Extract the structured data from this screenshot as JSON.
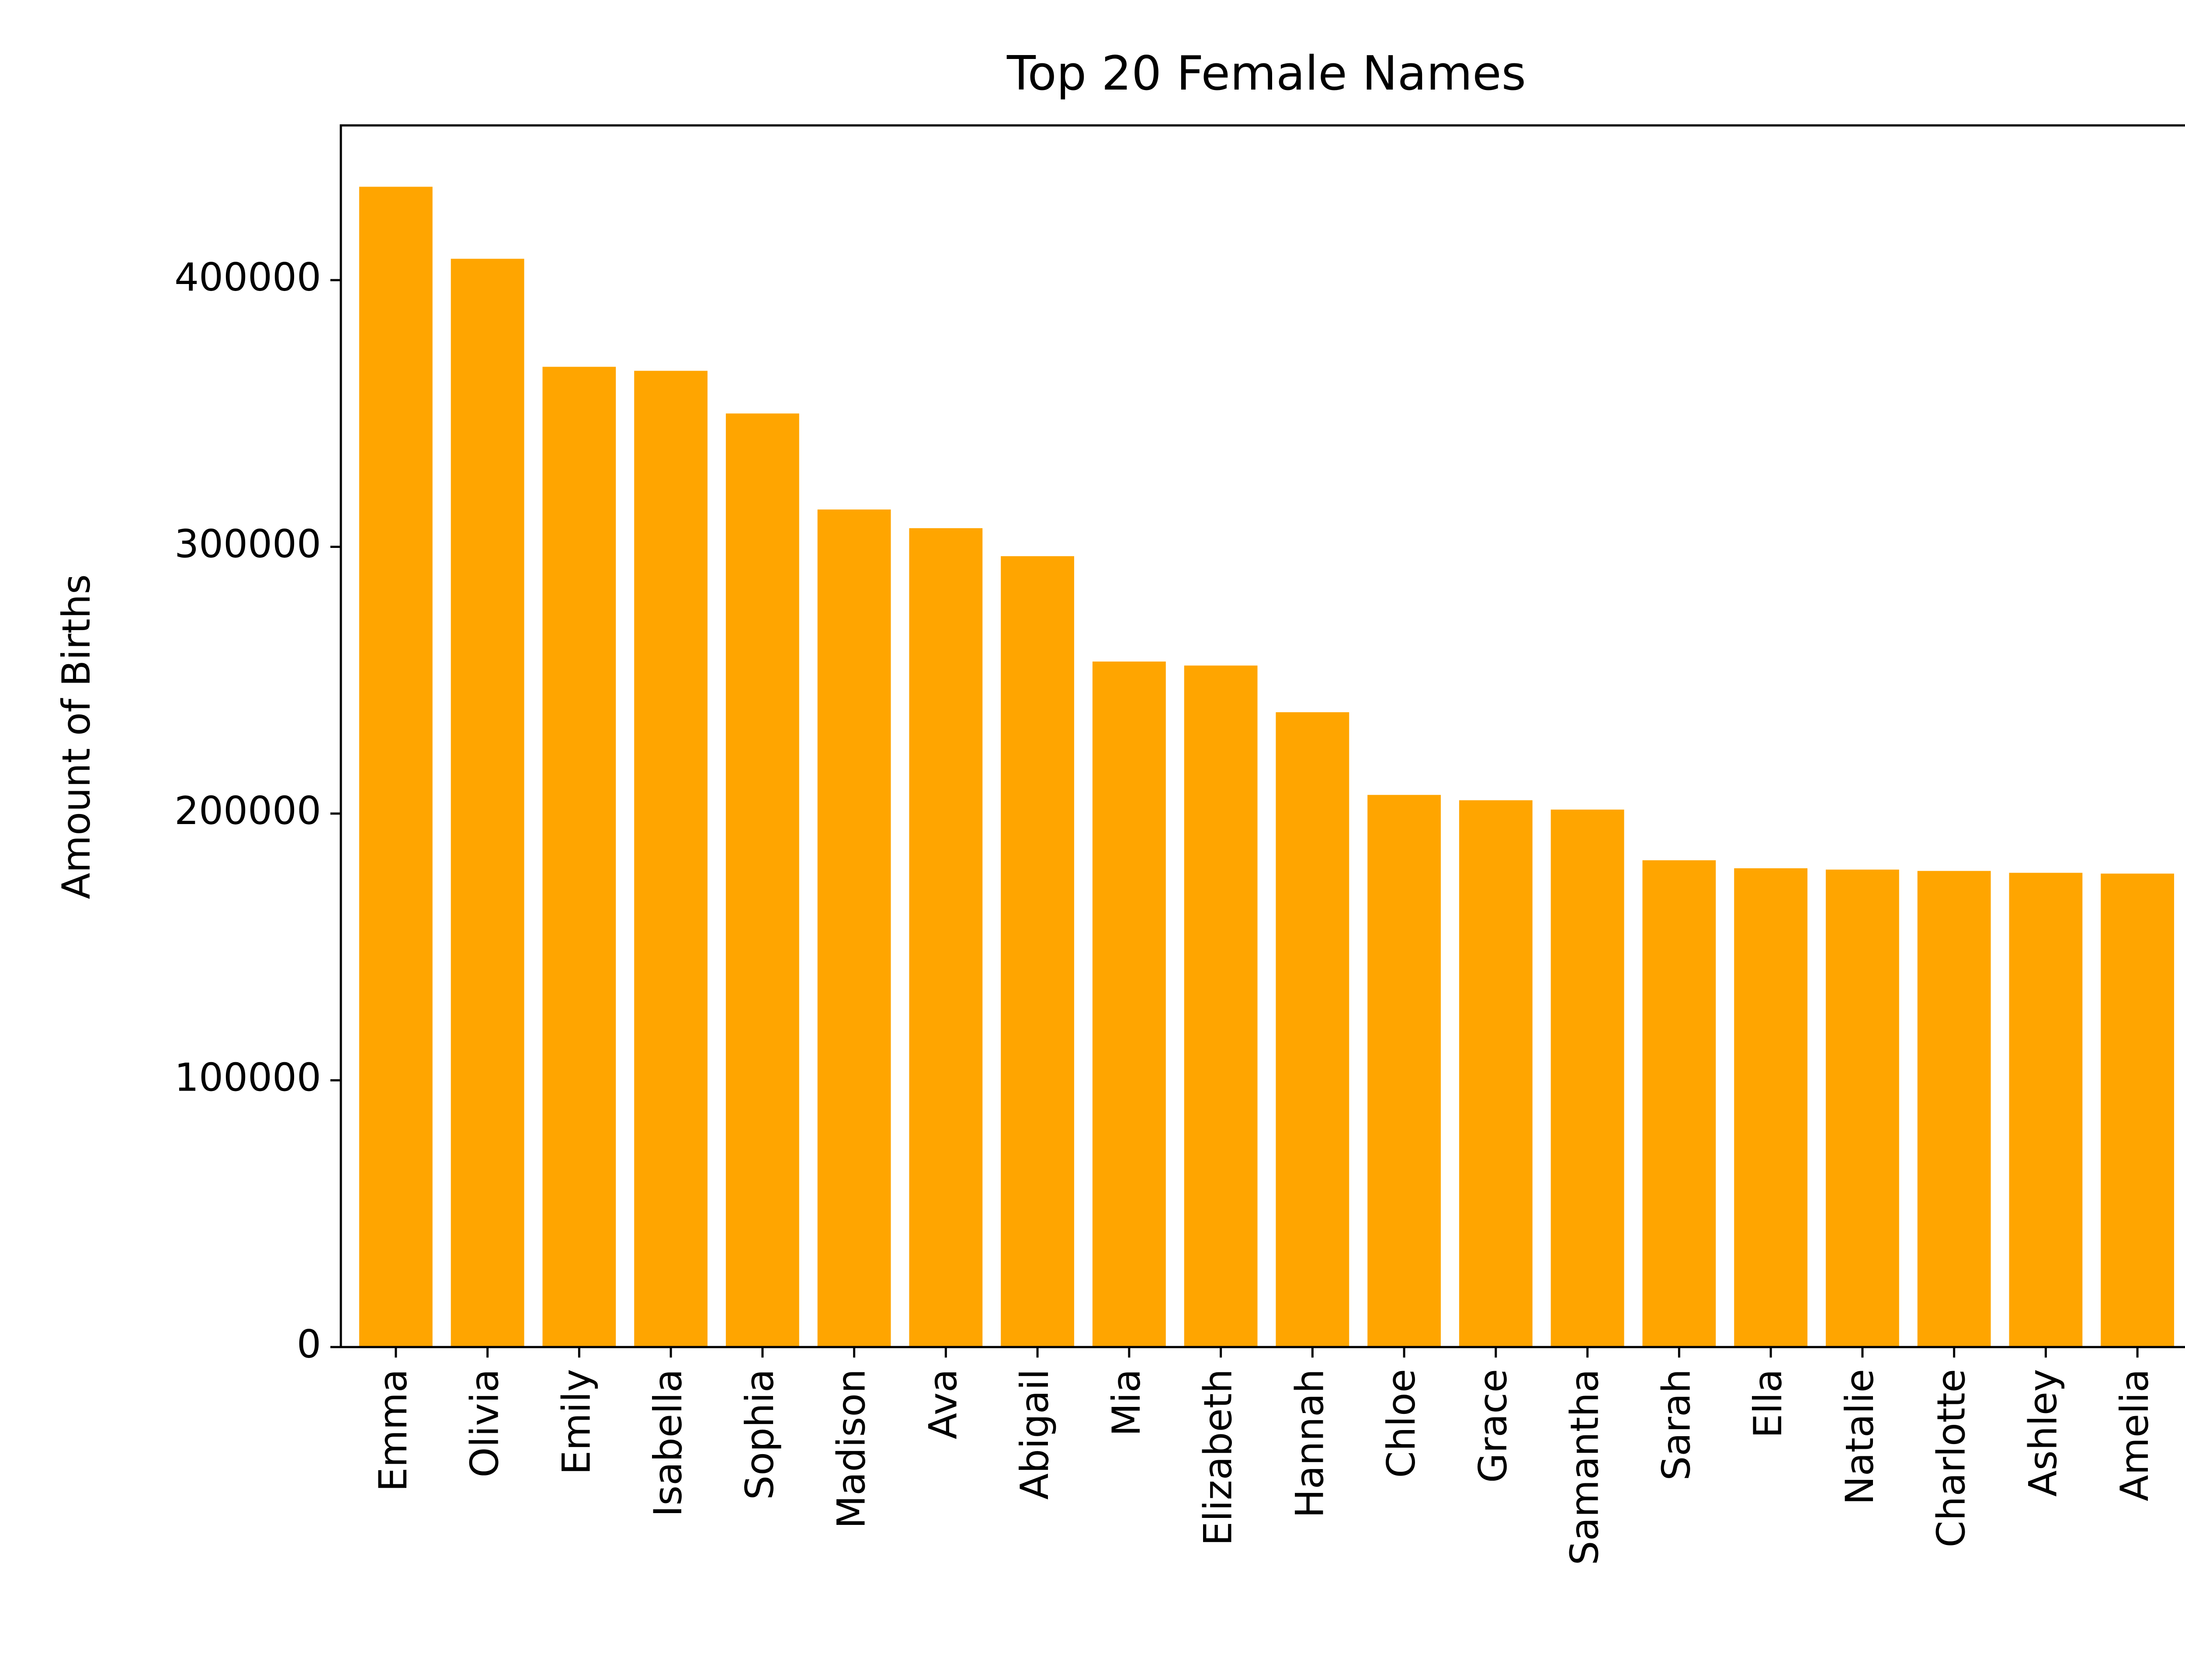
{
  "chart_data": {
    "type": "bar",
    "title": "Top 20 Female Names",
    "xlabel": "",
    "ylabel": "Amount of Births",
    "categories": [
      "Emma",
      "Olivia",
      "Emily",
      "Isabella",
      "Sophia",
      "Madison",
      "Ava",
      "Abigail",
      "Mia",
      "Elizabeth",
      "Hannah",
      "Chloe",
      "Grace",
      "Samantha",
      "Sarah",
      "Ella",
      "Natalie",
      "Charlotte",
      "Ashley",
      "Amelia"
    ],
    "values": [
      435000,
      408000,
      367500,
      366000,
      350000,
      314000,
      307000,
      296500,
      257000,
      255500,
      238000,
      207000,
      205000,
      201500,
      182500,
      179500,
      179000,
      178500,
      177800,
      177500
    ],
    "ylim": [
      0,
      458000
    ],
    "yticks": [
      0,
      100000,
      200000,
      300000,
      400000
    ],
    "ytick_labels": [
      "0",
      "100000",
      "200000",
      "300000",
      "400000"
    ],
    "bar_color": "#ffa500",
    "grid": false,
    "legend": "none"
  }
}
